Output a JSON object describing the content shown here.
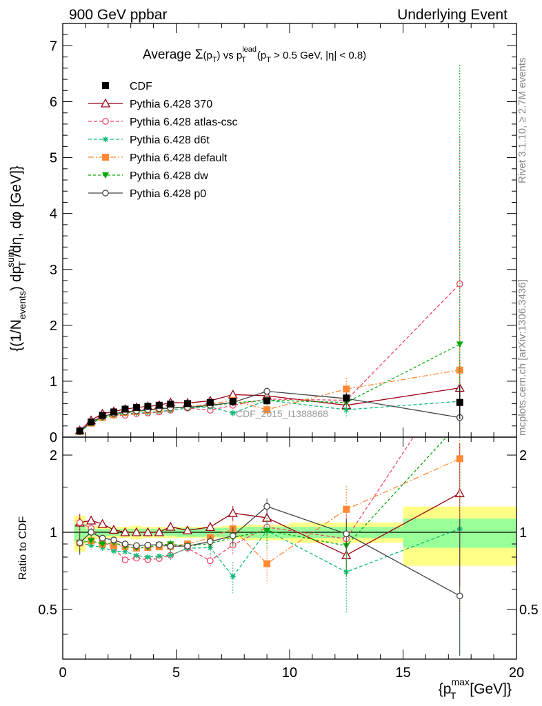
{
  "header": {
    "left": "900 GeV ppbar",
    "right": "Underlying Event"
  },
  "side_labels": {
    "rivet": "Rivet 3.1.10, ≥ 2.7M events",
    "mcplots": "mcplots.cern.ch [arXiv:1306.3436]"
  },
  "watermark": "CDF_2015_I1388868",
  "title": {
    "prefix": "Average ",
    "sigma": "Σ",
    "pt": "(p",
    "pt_sub": "T",
    "pt_close": ")",
    "vs": " vs p",
    "lead_sup": "lead",
    "lead_sub": "T",
    "cuts": " (p",
    "cuts_sub": "T",
    "cuts_rest": " > 0.5 GeV, |η| < 0.8)"
  },
  "ylabel": {
    "a": "{(1/N",
    "a_sub": "events",
    "b": ") dp",
    "b_sup": "sum",
    "b_sub": "T",
    "c": "/dη, dφ [GeV]}"
  },
  "ratio_ylabel": "Ratio to CDF",
  "xlabel": {
    "a": "{p",
    "sup": "max",
    "sub": "T",
    "b": " [GeV]}"
  },
  "chart_data": {
    "type": "line",
    "xlim": [
      0,
      20
    ],
    "ylim": [
      0,
      7.4
    ],
    "ratio_ylim": [
      0.32,
      2.35
    ],
    "x_ticks": [
      0,
      5,
      10,
      15,
      20
    ],
    "x_tick_labels": [
      "0",
      "5",
      "10",
      "15",
      "20"
    ],
    "y_ticks": [
      0,
      1,
      2,
      3,
      4,
      5,
      6,
      7
    ],
    "y_tick_labels": [
      "0",
      "1",
      "2",
      "3",
      "4",
      "5",
      "6",
      "7"
    ],
    "ratio_ticks": [
      0.5,
      1,
      2
    ],
    "ratio_tick_labels": [
      "0.5",
      "1",
      "2"
    ],
    "x": [
      0.75,
      1.25,
      1.75,
      2.25,
      2.75,
      3.25,
      3.75,
      4.25,
      4.75,
      5.5,
      6.5,
      7.5,
      9.0,
      12.5,
      17.5
    ],
    "bin_edges": [
      0.5,
      1.0,
      1.5,
      2.0,
      2.5,
      3.0,
      3.5,
      4.0,
      4.5,
      5.0,
      6.0,
      7.0,
      8.0,
      10.0,
      15.0,
      20.0
    ],
    "cdf": {
      "name": "CDF",
      "color": "#000000",
      "values": [
        0.11,
        0.27,
        0.39,
        0.45,
        0.5,
        0.53,
        0.55,
        0.57,
        0.59,
        0.6,
        0.62,
        0.64,
        0.65,
        0.7,
        0.62
      ],
      "errors": [
        0.02,
        0.02,
        0.02,
        0.02,
        0.02,
        0.02,
        0.02,
        0.03,
        0.03,
        0.03,
        0.04,
        0.05,
        0.06,
        0.08,
        0.3
      ]
    },
    "band_stat": [
      0.08,
      0.03,
      0.03,
      0.03,
      0.03,
      0.03,
      0.03,
      0.03,
      0.03,
      0.04,
      0.04,
      0.04,
      0.05,
      0.05,
      0.13
    ],
    "band_total": [
      0.16,
      0.06,
      0.06,
      0.05,
      0.05,
      0.06,
      0.05,
      0.05,
      0.05,
      0.05,
      0.05,
      0.06,
      0.07,
      0.09,
      0.26
    ],
    "series": [
      {
        "name": "Pythia 6.428 370",
        "color": "#990011",
        "dash": "",
        "marker": "triangle-open",
        "values": [
          0.12,
          0.3,
          0.42,
          0.46,
          0.5,
          0.53,
          0.55,
          0.57,
          0.62,
          0.61,
          0.65,
          0.76,
          0.74,
          0.57,
          0.88
        ],
        "errors": [
          0.01,
          0.01,
          0.01,
          0.01,
          0.01,
          0.01,
          0.01,
          0.01,
          0.02,
          0.02,
          0.03,
          0.05,
          0.08,
          0.1,
          0.5
        ]
      },
      {
        "name": "Pythia 6.428 atlas-csc",
        "color": "#ee4466",
        "dash": "5,3",
        "marker": "circle-open",
        "values": [
          0.12,
          0.28,
          0.36,
          0.39,
          0.39,
          0.42,
          0.43,
          0.45,
          0.48,
          0.52,
          0.48,
          0.57,
          0.68,
          0.66,
          2.74
        ],
        "errors": [
          0.01,
          0.01,
          0.01,
          0.01,
          0.01,
          0.01,
          0.01,
          0.01,
          0.02,
          0.02,
          0.03,
          0.05,
          0.1,
          0.2,
          2.65
        ]
      },
      {
        "name": "Pythia 6.428 d6t",
        "color": "#11bb77",
        "dash": "5,3",
        "marker": "star",
        "values": [
          0.1,
          0.24,
          0.34,
          0.38,
          0.42,
          0.43,
          0.44,
          0.46,
          0.48,
          0.52,
          0.54,
          0.43,
          0.66,
          0.49,
          0.64
        ],
        "errors": [
          0.01,
          0.01,
          0.01,
          0.01,
          0.01,
          0.01,
          0.01,
          0.01,
          0.02,
          0.02,
          0.03,
          0.06,
          0.1,
          0.15,
          0.5
        ]
      },
      {
        "name": "Pythia 6.428 default",
        "color": "#ff8833",
        "dash": "8,3,2,3",
        "marker": "square",
        "values": [
          0.1,
          0.25,
          0.35,
          0.4,
          0.44,
          0.46,
          0.48,
          0.5,
          0.52,
          0.54,
          0.59,
          0.66,
          0.49,
          0.86,
          1.2
        ],
        "errors": [
          0.01,
          0.01,
          0.01,
          0.01,
          0.01,
          0.01,
          0.01,
          0.01,
          0.02,
          0.02,
          0.03,
          0.05,
          0.08,
          0.2,
          0.9
        ]
      },
      {
        "name": "Pythia 6.428 dw",
        "color": "#00aa00",
        "dash": "4,3",
        "marker": "triangle-down",
        "values": [
          0.1,
          0.25,
          0.35,
          0.41,
          0.44,
          0.46,
          0.48,
          0.51,
          0.53,
          0.53,
          0.56,
          0.61,
          0.66,
          0.62,
          1.66
        ],
        "errors": [
          0.01,
          0.01,
          0.01,
          0.01,
          0.01,
          0.01,
          0.01,
          0.01,
          0.02,
          0.02,
          0.03,
          0.05,
          0.08,
          0.15,
          5.0
        ]
      },
      {
        "name": "Pythia 6.428 p0",
        "color": "#444444",
        "dash": "",
        "marker": "circle-open",
        "values": [
          0.1,
          0.27,
          0.37,
          0.42,
          0.45,
          0.47,
          0.49,
          0.51,
          0.52,
          0.53,
          0.57,
          0.62,
          0.82,
          0.69,
          0.35
        ],
        "errors": [
          0.01,
          0.01,
          0.01,
          0.01,
          0.01,
          0.01,
          0.01,
          0.01,
          0.02,
          0.02,
          0.03,
          0.05,
          0.06,
          0.1,
          0.35
        ]
      }
    ]
  }
}
